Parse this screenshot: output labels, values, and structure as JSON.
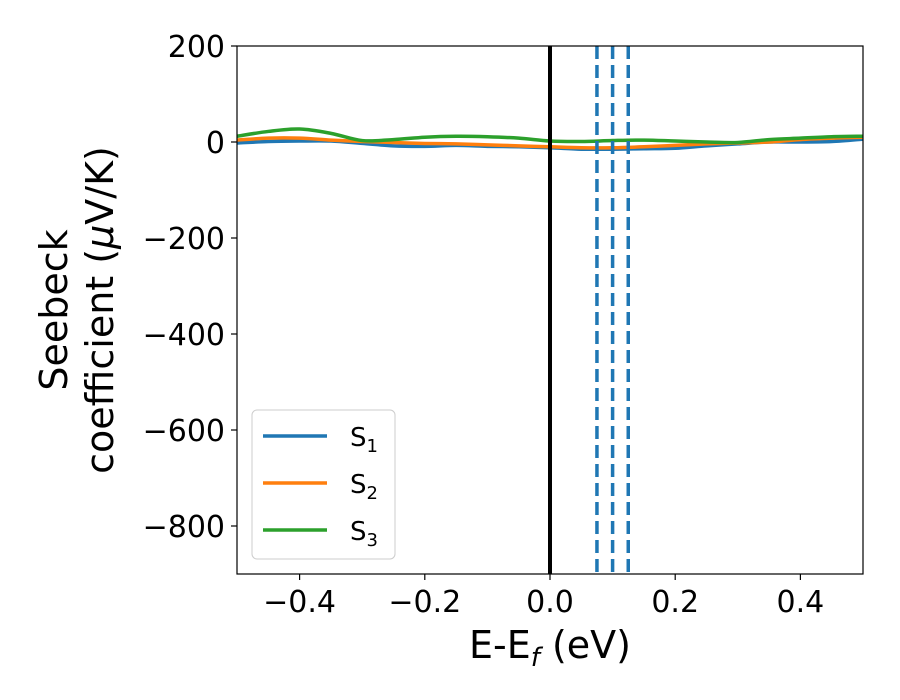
{
  "chart_data": {
    "type": "line",
    "xlabel": "E-E_f (eV)",
    "xlabel_parts": {
      "main": "E-E",
      "sub": "f",
      "rest": " (eV)"
    },
    "ylabel_line1": "Seebeck",
    "ylabel_line2_prefix": "coefficient  (",
    "ylabel_mu": "μ",
    "ylabel_line2_suffix": "V/K)",
    "xlim": [
      -0.5,
      0.5
    ],
    "ylim": [
      -900,
      200
    ],
    "xticks": [
      -0.4,
      -0.2,
      0.0,
      0.2,
      0.4
    ],
    "xtick_labels": [
      "−0.4",
      "−0.2",
      "0.0",
      "0.2",
      "0.4"
    ],
    "yticks": [
      200,
      0,
      -200,
      -400,
      -600,
      -800
    ],
    "ytick_labels": [
      "200",
      "0",
      "−200",
      "−400",
      "−600",
      "−800"
    ],
    "grid": false,
    "legend_position": "lower-left",
    "series": [
      {
        "name": "S1",
        "base": "S",
        "sub": "1",
        "color": "#1f77b4",
        "x": [
          -0.5,
          -0.45,
          -0.4,
          -0.35,
          -0.3,
          -0.25,
          -0.2,
          -0.15,
          -0.1,
          -0.05,
          0.0,
          0.05,
          0.1,
          0.15,
          0.2,
          0.25,
          0.3,
          0.35,
          0.4,
          0.45,
          0.5
        ],
        "y": [
          -2,
          1,
          2,
          2,
          -3,
          -8,
          -9,
          -7,
          -9,
          -10,
          -12,
          -15,
          -15,
          -14,
          -13,
          -8,
          -4,
          0,
          0,
          1,
          6
        ]
      },
      {
        "name": "S2",
        "base": "S",
        "sub": "2",
        "color": "#ff7f0e",
        "x": [
          -0.5,
          -0.45,
          -0.4,
          -0.35,
          -0.3,
          -0.25,
          -0.2,
          -0.15,
          -0.1,
          -0.05,
          0.0,
          0.05,
          0.1,
          0.15,
          0.2,
          0.25,
          0.3,
          0.35,
          0.4,
          0.45,
          0.5
        ],
        "y": [
          4,
          8,
          8,
          4,
          1,
          -1,
          -3,
          -4,
          -6,
          -8,
          -10,
          -12,
          -12,
          -10,
          -7,
          -4,
          -2,
          0,
          5,
          8,
          10
        ]
      },
      {
        "name": "S3",
        "base": "S",
        "sub": "3",
        "color": "#2ca02c",
        "x": [
          -0.5,
          -0.45,
          -0.4,
          -0.35,
          -0.3,
          -0.25,
          -0.2,
          -0.15,
          -0.1,
          -0.05,
          0.0,
          0.05,
          0.1,
          0.15,
          0.2,
          0.25,
          0.3,
          0.35,
          0.4,
          0.45,
          0.5
        ],
        "y": [
          12,
          22,
          27,
          18,
          3,
          5,
          10,
          12,
          11,
          8,
          2,
          1,
          3,
          4,
          2,
          0,
          -1,
          5,
          8,
          11,
          12
        ]
      }
    ],
    "vertical_lines": [
      {
        "x": 0.0,
        "color": "#000000",
        "style": "solid"
      },
      {
        "x": 0.075,
        "color": "#1f77b4",
        "style": "dashed"
      },
      {
        "x": 0.1,
        "color": "#1f77b4",
        "style": "dashed"
      },
      {
        "x": 0.125,
        "color": "#1f77b4",
        "style": "dashed"
      }
    ]
  }
}
